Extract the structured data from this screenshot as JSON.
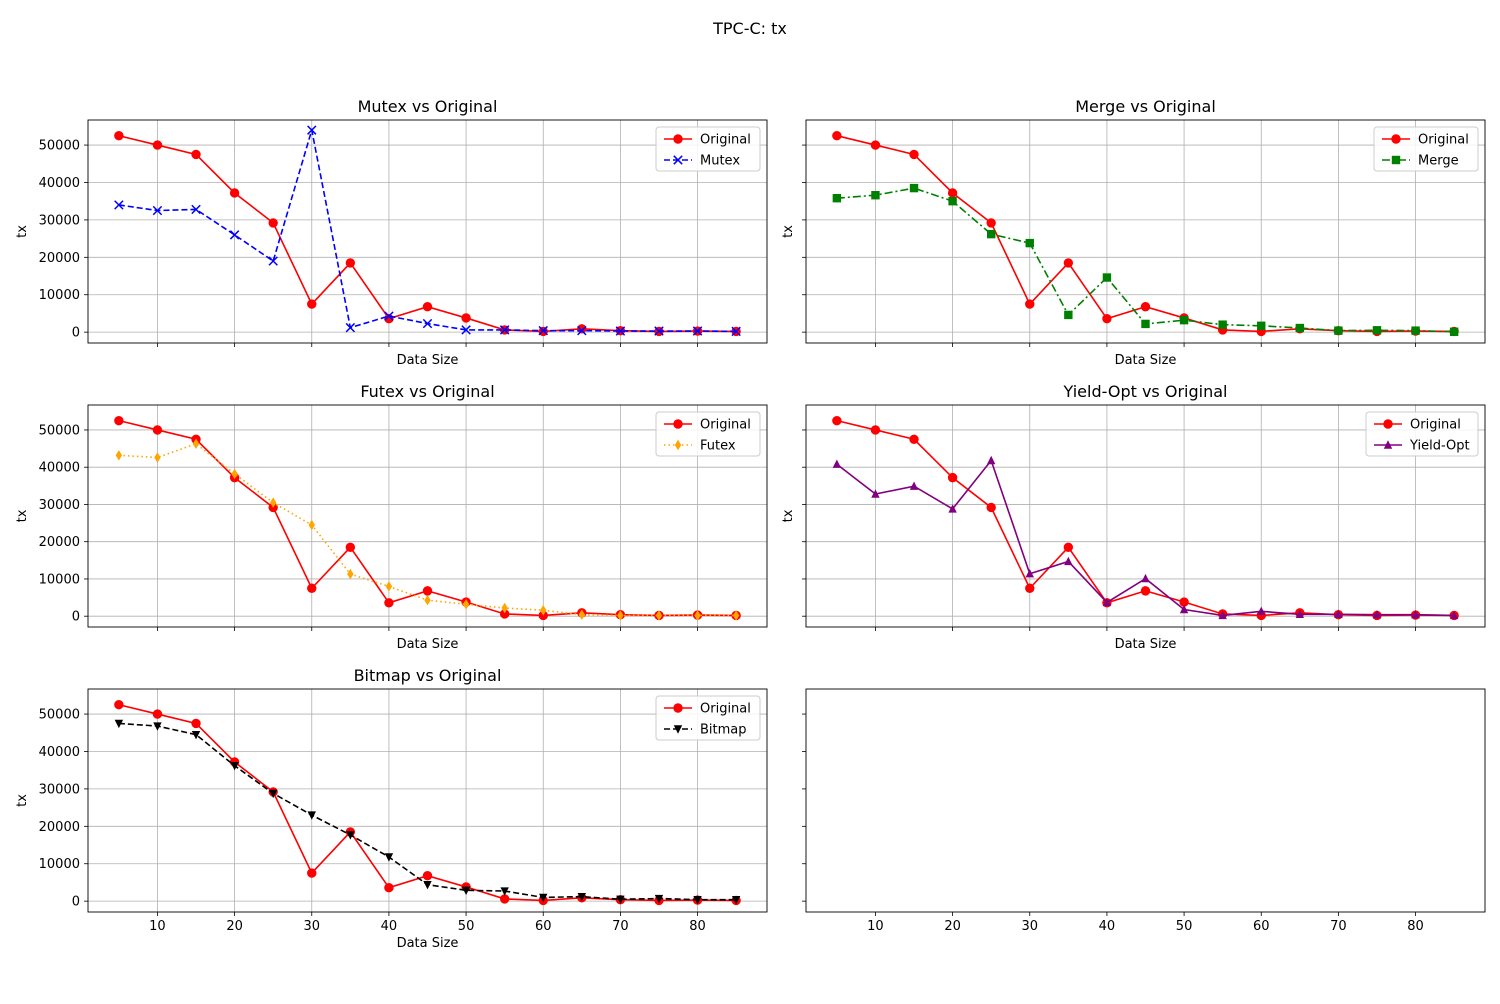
{
  "figure": {
    "title": "TPC-C: tx"
  },
  "chart_data": [
    {
      "type": "line",
      "title": "Mutex vs Original",
      "xlabel": "Data Size",
      "ylabel": "tx",
      "grid": true,
      "legend": "top-right",
      "x": [
        5,
        10,
        15,
        20,
        25,
        30,
        35,
        40,
        45,
        50,
        55,
        60,
        65,
        70,
        75,
        80,
        85
      ],
      "xticks": [
        10,
        20,
        30,
        40,
        50,
        60,
        70,
        80
      ],
      "xtick_labels_visible": false,
      "yticks": [
        0,
        10000,
        20000,
        30000,
        40000,
        50000
      ],
      "ytick_labels_visible": true,
      "series": [
        {
          "name": "Original",
          "color": "#ff0000",
          "linestyle": "solid",
          "marker": "circle",
          "values": [
            52500,
            50000,
            47500,
            37200,
            29200,
            7500,
            18500,
            3600,
            6800,
            3800,
            600,
            200,
            900,
            400,
            200,
            300,
            200
          ]
        },
        {
          "name": "Mutex",
          "color": "#0000ff",
          "linestyle": "dashed",
          "marker": "x",
          "values": [
            34000,
            32500,
            32800,
            26000,
            19000,
            54000,
            1200,
            4300,
            2300,
            600,
            600,
            400,
            400,
            300,
            300,
            300,
            200
          ]
        }
      ]
    },
    {
      "type": "line",
      "title": "Merge vs Original",
      "xlabel": "Data Size",
      "ylabel": "tx",
      "grid": true,
      "legend": "top-right",
      "x": [
        5,
        10,
        15,
        20,
        25,
        30,
        35,
        40,
        45,
        50,
        55,
        60,
        65,
        70,
        75,
        80,
        85
      ],
      "xticks": [
        10,
        20,
        30,
        40,
        50,
        60,
        70,
        80
      ],
      "xtick_labels_visible": false,
      "yticks": [
        0,
        10000,
        20000,
        30000,
        40000,
        50000
      ],
      "ytick_labels_visible": false,
      "series": [
        {
          "name": "Original",
          "color": "#ff0000",
          "linestyle": "solid",
          "marker": "circle",
          "values": [
            52500,
            50000,
            47500,
            37200,
            29200,
            7500,
            18500,
            3600,
            6800,
            3800,
            600,
            200,
            900,
            400,
            200,
            300,
            200
          ]
        },
        {
          "name": "Merge",
          "color": "#008000",
          "linestyle": "dashdot",
          "marker": "square",
          "values": [
            35800,
            36600,
            38500,
            35000,
            26200,
            23800,
            4600,
            14600,
            2200,
            3200,
            2000,
            1700,
            1100,
            400,
            500,
            400,
            100
          ]
        }
      ]
    },
    {
      "type": "line",
      "title": "Futex vs Original",
      "xlabel": "Data Size",
      "ylabel": "tx",
      "grid": true,
      "legend": "top-right",
      "x": [
        5,
        10,
        15,
        20,
        25,
        30,
        35,
        40,
        45,
        50,
        55,
        60,
        65,
        70,
        75,
        80,
        85
      ],
      "xticks": [
        10,
        20,
        30,
        40,
        50,
        60,
        70,
        80
      ],
      "xtick_labels_visible": false,
      "yticks": [
        0,
        10000,
        20000,
        30000,
        40000,
        50000
      ],
      "ytick_labels_visible": true,
      "series": [
        {
          "name": "Original",
          "color": "#ff0000",
          "linestyle": "solid",
          "marker": "circle",
          "values": [
            52500,
            50000,
            47500,
            37200,
            29200,
            7500,
            18500,
            3600,
            6800,
            3800,
            600,
            200,
            900,
            400,
            200,
            300,
            200
          ]
        },
        {
          "name": "Futex",
          "color": "#ffa500",
          "linestyle": "dotted",
          "marker": "diamond",
          "values": [
            43200,
            42600,
            46300,
            38200,
            30500,
            24500,
            11300,
            8000,
            4300,
            3200,
            2200,
            1600,
            400,
            200,
            200,
            200,
            200
          ]
        }
      ]
    },
    {
      "type": "line",
      "title": "Yield-Opt vs Original",
      "xlabel": "Data Size",
      "ylabel": "tx",
      "grid": true,
      "legend": "top-right",
      "x": [
        5,
        10,
        15,
        20,
        25,
        30,
        35,
        40,
        45,
        50,
        55,
        60,
        65,
        70,
        75,
        80,
        85
      ],
      "xticks": [
        10,
        20,
        30,
        40,
        50,
        60,
        70,
        80
      ],
      "xtick_labels_visible": false,
      "yticks": [
        0,
        10000,
        20000,
        30000,
        40000,
        50000
      ],
      "ytick_labels_visible": false,
      "series": [
        {
          "name": "Original",
          "color": "#ff0000",
          "linestyle": "solid",
          "marker": "circle",
          "values": [
            52500,
            50000,
            47500,
            37200,
            29200,
            7500,
            18500,
            3600,
            6800,
            3800,
            600,
            200,
            900,
            400,
            200,
            300,
            200
          ]
        },
        {
          "name": "Yield-Opt",
          "color": "#800080",
          "linestyle": "solid",
          "marker": "triangle-up",
          "values": [
            40800,
            32800,
            34900,
            28800,
            41800,
            11400,
            14700,
            3700,
            10100,
            1800,
            200,
            1300,
            500,
            500,
            400,
            400,
            200
          ]
        }
      ]
    },
    {
      "type": "line",
      "title": "Bitmap vs Original",
      "xlabel": "Data Size",
      "ylabel": "tx",
      "grid": true,
      "legend": "top-right",
      "x": [
        5,
        10,
        15,
        20,
        25,
        30,
        35,
        40,
        45,
        50,
        55,
        60,
        65,
        70,
        75,
        80,
        85
      ],
      "xticks": [
        10,
        20,
        30,
        40,
        50,
        60,
        70,
        80
      ],
      "xtick_labels_visible": true,
      "yticks": [
        0,
        10000,
        20000,
        30000,
        40000,
        50000
      ],
      "ytick_labels_visible": true,
      "series": [
        {
          "name": "Original",
          "color": "#ff0000",
          "linestyle": "solid",
          "marker": "circle",
          "values": [
            52500,
            50000,
            47500,
            37200,
            29200,
            7500,
            18500,
            3600,
            6800,
            3800,
            600,
            200,
            900,
            400,
            200,
            300,
            200
          ]
        },
        {
          "name": "Bitmap",
          "color": "#000000",
          "linestyle": "dashed",
          "marker": "triangle-down",
          "values": [
            47500,
            46800,
            44500,
            36200,
            28800,
            23000,
            17700,
            11800,
            4400,
            2900,
            2700,
            1000,
            1200,
            500,
            700,
            400,
            400
          ]
        }
      ]
    },
    {
      "type": "line",
      "title": "",
      "xlabel": "",
      "ylabel": "",
      "grid": false,
      "x": [],
      "xticks": [
        10,
        20,
        30,
        40,
        50,
        60,
        70,
        80
      ],
      "xtick_labels_visible": true,
      "yticks": [
        0,
        10000,
        20000,
        30000,
        40000,
        50000
      ],
      "ytick_labels_visible": false,
      "series": []
    }
  ]
}
